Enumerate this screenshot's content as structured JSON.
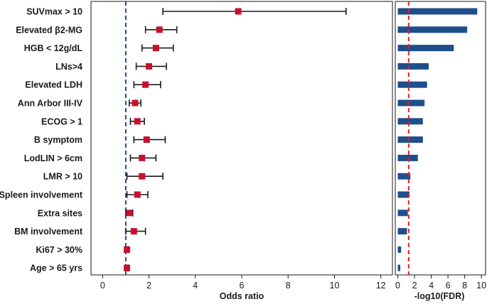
{
  "chart_data": [
    {
      "type": "forest",
      "xlabel": "Odds ratio",
      "xlim": [
        -0.5,
        12.5
      ],
      "xticks": [
        0,
        2,
        4,
        6,
        8,
        10,
        12
      ],
      "reference_line": 1,
      "categories": [
        "SUVmax > 10",
        "Elevated β2-MG",
        "HGB < 12g/dL",
        "LNs>4",
        "Elevated LDH",
        "Ann Arbor III-IV",
        "ECOG > 1",
        "B symptom",
        "LodLIN > 6cm",
        "LMR > 10",
        "Spleen involvement",
        "Extra sites",
        "BM involvement",
        "Ki67 > 30%",
        "Age > 65 yrs"
      ],
      "estimate": [
        5.85,
        2.45,
        2.3,
        2.0,
        1.85,
        1.4,
        1.5,
        1.9,
        1.7,
        1.7,
        1.5,
        1.15,
        1.35,
        1.05,
        1.05
      ],
      "lower": [
        2.6,
        1.85,
        1.7,
        1.45,
        1.35,
        1.15,
        1.2,
        1.35,
        1.2,
        1.05,
        1.05,
        1.0,
        1.0,
        1.0,
        1.0
      ],
      "upper": [
        10.5,
        3.2,
        3.05,
        2.75,
        2.5,
        1.65,
        1.8,
        2.7,
        2.3,
        2.6,
        1.95,
        1.3,
        1.85,
        1.1,
        1.1
      ],
      "colors": {
        "marker": "#c8102e",
        "whisker": "#1a1a1a",
        "ref_line": "#1f4e8c"
      }
    },
    {
      "type": "bar",
      "orientation": "horizontal",
      "xlabel": "-log10(FDR)",
      "xlim": [
        -0.3,
        10.5
      ],
      "xticks": [
        0,
        2,
        4,
        6,
        8,
        10
      ],
      "reference_line": 1.3,
      "values": [
        9.5,
        8.3,
        6.7,
        3.7,
        3.5,
        3.2,
        3.0,
        3.0,
        2.4,
        1.5,
        1.4,
        1.2,
        1.1,
        0.4,
        0.3
      ],
      "colors": {
        "bar": "#1f4e8c",
        "ref_line": "#e02020"
      }
    }
  ]
}
